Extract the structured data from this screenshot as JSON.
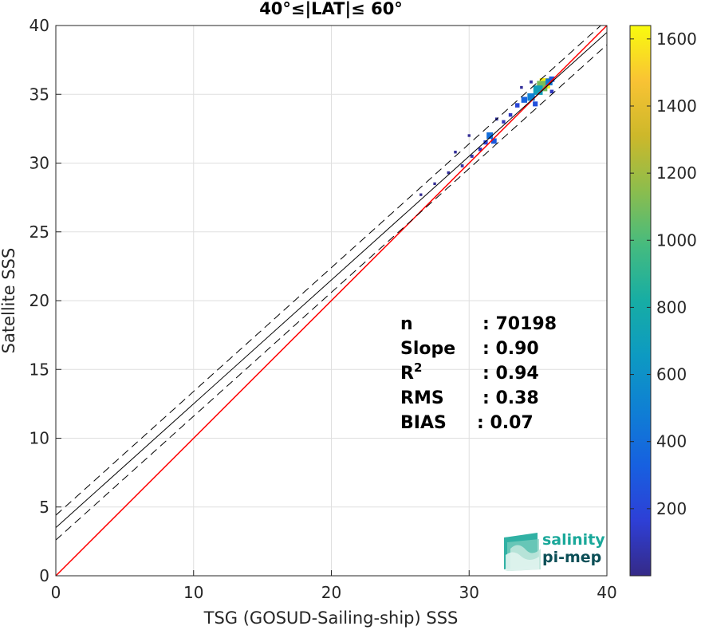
{
  "chart_data": {
    "type": "heatmap",
    "title": "40°≤|LAT|≤ 60°",
    "xlabel": "TSG (GOSUD-Sailing-ship) SSS",
    "ylabel": "Satellite SSS",
    "xlim": [
      0,
      40
    ],
    "ylim": [
      0,
      40
    ],
    "xticks": [
      0,
      10,
      20,
      30,
      40
    ],
    "yticks": [
      0,
      5,
      10,
      15,
      20,
      25,
      30,
      35,
      40
    ],
    "grid": true,
    "colorbar": {
      "range": [
        0,
        1640
      ],
      "ticks": [
        200,
        400,
        600,
        800,
        1000,
        1200,
        1400,
        1600
      ],
      "colormap": "parula"
    },
    "lines": [
      {
        "label": "one-to-one",
        "color": "#ff0000",
        "style": "solid",
        "x": [
          0,
          40
        ],
        "y": [
          0,
          40
        ]
      },
      {
        "label": "regression",
        "color": "#000000",
        "style": "solid",
        "x": [
          0,
          40
        ],
        "y": [
          3.5,
          39.5
        ]
      },
      {
        "label": "upper",
        "color": "#000000",
        "style": "dashed",
        "x": [
          0,
          40
        ],
        "y": [
          4.4,
          40.4
        ]
      },
      {
        "label": "lower",
        "color": "#000000",
        "style": "dashed",
        "x": [
          0,
          40
        ],
        "y": [
          2.6,
          38.6
        ]
      }
    ],
    "density_cells": [
      {
        "x": 35.5,
        "y": 35.8,
        "count": 1600
      },
      {
        "x": 35.3,
        "y": 35.6,
        "count": 1100
      },
      {
        "x": 35.0,
        "y": 35.3,
        "count": 700
      },
      {
        "x": 34.5,
        "y": 34.8,
        "count": 500
      },
      {
        "x": 34.0,
        "y": 34.6,
        "count": 350
      },
      {
        "x": 35.8,
        "y": 35.9,
        "count": 450
      },
      {
        "x": 36.0,
        "y": 36.1,
        "count": 300
      },
      {
        "x": 33.5,
        "y": 34.2,
        "count": 200
      },
      {
        "x": 34.8,
        "y": 34.3,
        "count": 250
      },
      {
        "x": 33.0,
        "y": 33.5,
        "count": 120
      },
      {
        "x": 32.5,
        "y": 33.0,
        "count": 100
      },
      {
        "x": 31.5,
        "y": 32.0,
        "count": 400
      },
      {
        "x": 31.8,
        "y": 31.6,
        "count": 300
      },
      {
        "x": 31.2,
        "y": 31.5,
        "count": 180
      },
      {
        "x": 30.8,
        "y": 31.0,
        "count": 120
      },
      {
        "x": 30.2,
        "y": 30.5,
        "count": 80
      },
      {
        "x": 29.5,
        "y": 29.8,
        "count": 60
      },
      {
        "x": 29.0,
        "y": 30.8,
        "count": 40
      },
      {
        "x": 28.5,
        "y": 29.3,
        "count": 40
      },
      {
        "x": 27.5,
        "y": 28.5,
        "count": 30
      },
      {
        "x": 26.5,
        "y": 27.7,
        "count": 25
      },
      {
        "x": 32.0,
        "y": 33.2,
        "count": 60
      },
      {
        "x": 33.8,
        "y": 35.5,
        "count": 40
      },
      {
        "x": 36.0,
        "y": 35.2,
        "count": 120
      },
      {
        "x": 34.5,
        "y": 35.9,
        "count": 60
      },
      {
        "x": 30.0,
        "y": 32.0,
        "count": 30
      }
    ],
    "stats": [
      {
        "label": "n",
        "value": ": 70198"
      },
      {
        "label": "Slope",
        "value": ": 0.90"
      },
      {
        "label": "R",
        "sup": "2",
        "value": ": 0.94"
      },
      {
        "label": "RMS",
        "value": ": 0.38"
      },
      {
        "label": "BIAS",
        "value": ": 0.07"
      }
    ]
  },
  "logo": {
    "line1": "salinity",
    "line2": "pi-mep",
    "color1": "#1aa89a",
    "color2": "#0c4f57"
  }
}
